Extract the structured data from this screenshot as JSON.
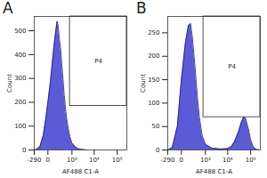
{
  "chart_data": [
    {
      "type": "area",
      "title": "A",
      "color": "#5b5bd8",
      "xlabel": "AF488 C1-A",
      "ylabel": "Count",
      "log": "x",
      "x": [
        -290,
        -200,
        -120,
        -60,
        -20,
        0,
        30,
        60,
        90,
        120,
        150,
        180,
        210,
        250,
        300,
        350,
        400,
        500,
        600,
        800,
        1000,
        1500,
        2000,
        3000,
        5000,
        262144
      ],
      "values": [
        0,
        3,
        15,
        60,
        140,
        200,
        290,
        380,
        450,
        500,
        540,
        520,
        470,
        430,
        360,
        300,
        240,
        160,
        110,
        55,
        30,
        12,
        5,
        2,
        0,
        0
      ],
      "xlim": [
        -290,
        262144
      ],
      "xticks": [
        -290,
        0,
        {
          "value": 1000,
          "label": "10³"
        },
        {
          "value": 10000,
          "label": "10⁴"
        },
        {
          "value": 100000,
          "label": "10⁵"
        }
      ],
      "ylim": [
        0,
        560
      ],
      "yticks": [
        0,
        100,
        200,
        300,
        400,
        500
      ],
      "gate": {
        "label": "P4",
        "x": 800,
        "y": 185
      }
    },
    {
      "type": "area",
      "title": "B",
      "color": "#5b5bd8",
      "xlabel": "AF488 C1-A",
      "ylabel": "Count",
      "log": "x",
      "x": [
        -290,
        -150,
        -50,
        0,
        50,
        100,
        150,
        200,
        300,
        400,
        500,
        700,
        1000,
        2000,
        5000,
        10000,
        15000,
        20000,
        30000,
        40000,
        50000,
        60000,
        80000,
        100000,
        130000,
        180000,
        262144
      ],
      "values": [
        0,
        5,
        50,
        150,
        230,
        265,
        270,
        240,
        170,
        110,
        70,
        30,
        12,
        4,
        2,
        3,
        8,
        18,
        40,
        60,
        70,
        68,
        45,
        22,
        6,
        1,
        0
      ],
      "xlim": [
        -290,
        262144
      ],
      "xticks": [
        -290,
        0,
        {
          "value": 1000,
          "label": "10³"
        },
        {
          "value": 10000,
          "label": "10⁴"
        },
        {
          "value": 100000,
          "label": "10⁵"
        }
      ],
      "ylim": [
        0,
        285
      ],
      "yticks": [
        0,
        50,
        100,
        150,
        200,
        250
      ],
      "gate": {
        "label": "P4",
        "x": 800,
        "y": 70
      }
    }
  ]
}
